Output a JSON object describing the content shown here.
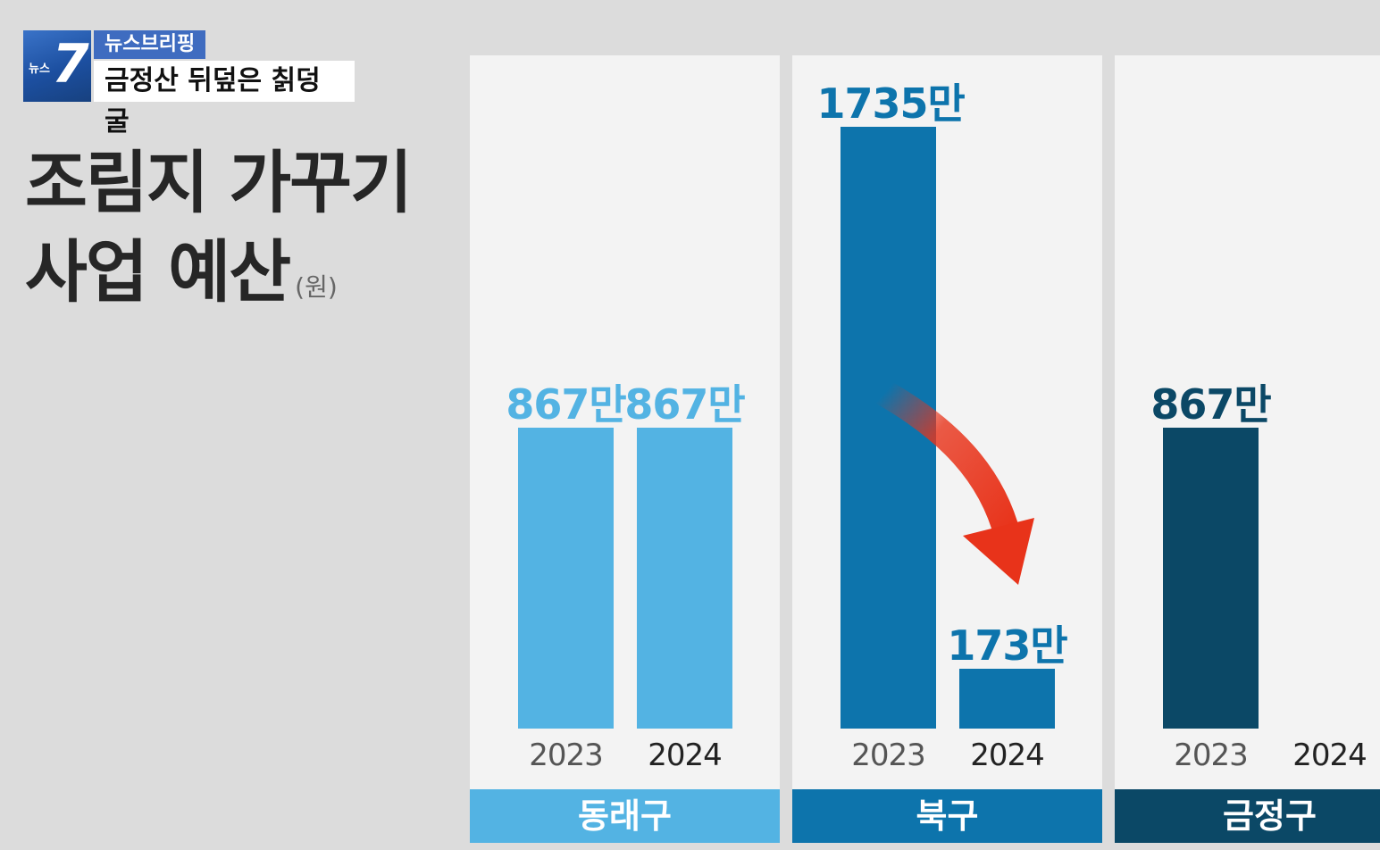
{
  "header": {
    "logo_number": "7",
    "logo_text": "뉴스",
    "tag_top": "뉴스브리핑",
    "tag_bottom": "금정산 뒤덮은 칡덩굴"
  },
  "title": {
    "line1": "조림지 가꾸기",
    "line2": "사업 예산",
    "unit": "(원)"
  },
  "colors": {
    "dongnae": "#53b3e3",
    "buk": "#0d74ac",
    "geumjeong": "#0b4866",
    "arrow": "#e8331a"
  },
  "chart_data": {
    "type": "bar",
    "unit": "원",
    "ylim": [
      0,
      17350000
    ],
    "groups": [
      {
        "name": "동래구",
        "bars": [
          {
            "year": "2023",
            "value": 8670000,
            "label": "867만"
          },
          {
            "year": "2024",
            "value": 8670000,
            "label": "867만"
          }
        ]
      },
      {
        "name": "북구",
        "bars": [
          {
            "year": "2023",
            "value": 17350000,
            "label": "1735만"
          },
          {
            "year": "2024",
            "value": 1730000,
            "label": "173만"
          }
        ]
      },
      {
        "name": "금정구",
        "bars": [
          {
            "year": "2023",
            "value": 8670000,
            "label": "867만"
          },
          {
            "year": "2024",
            "value": null,
            "label": ""
          }
        ]
      }
    ]
  }
}
